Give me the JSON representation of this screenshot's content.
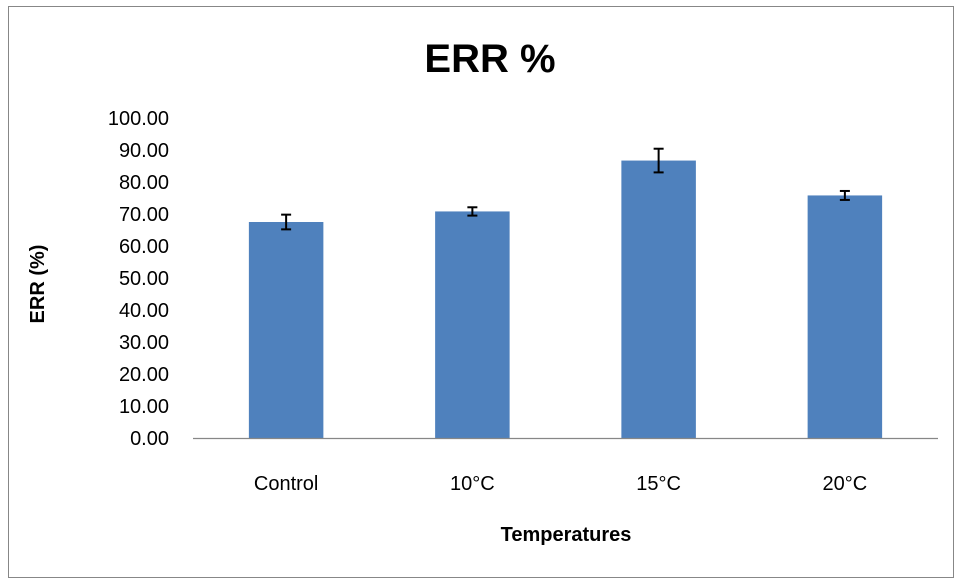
{
  "chart_data": {
    "type": "bar",
    "title": "ERR %",
    "xlabel": "Temperatures",
    "ylabel": "ERR (%)",
    "categories": [
      "Control",
      "10°C",
      "15°C",
      "20°C"
    ],
    "values": [
      67.5,
      70.8,
      86.7,
      75.8
    ],
    "errors": [
      2.3,
      1.3,
      3.7,
      1.4
    ],
    "ylim": [
      0,
      100
    ],
    "yticks": [
      "0.00",
      "10.00",
      "20.00",
      "30.00",
      "40.00",
      "50.00",
      "60.00",
      "70.00",
      "80.00",
      "90.00",
      "100.00"
    ],
    "grid": false,
    "legend": "none",
    "bar_color": "#4f81bd",
    "error_bar_color": "#000000"
  }
}
